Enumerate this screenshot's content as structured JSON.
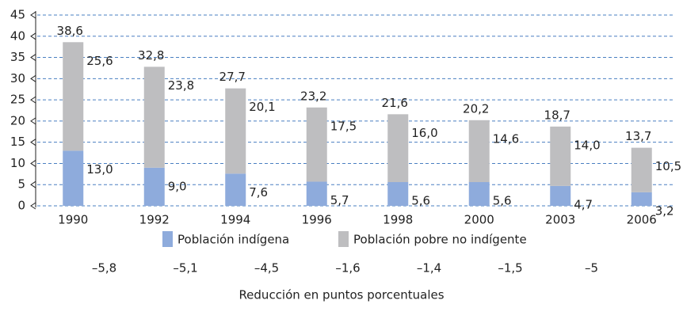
{
  "chart_data": {
    "type": "stacked_bar",
    "categories": [
      "1990",
      "1992",
      "1994",
      "1996",
      "1998",
      "2000",
      "2003",
      "2006"
    ],
    "series": [
      {
        "name": "Población indígena",
        "color": "#8eabdc",
        "values": [
          13.0,
          9.0,
          7.6,
          5.7,
          5.6,
          5.6,
          4.7,
          3.2
        ],
        "value_labels": [
          "13,0",
          "9,0",
          "7,6",
          "5,7",
          "5,6",
          "5,6",
          "4,7",
          "3,2"
        ]
      },
      {
        "name": "Población pobre no indígente",
        "color": "#bebec0",
        "values": [
          25.6,
          23.8,
          20.1,
          17.5,
          16.0,
          14.6,
          14.0,
          10.5
        ],
        "value_labels": [
          "25,6",
          "23,8",
          "20,1",
          "17,5",
          "16,0",
          "14,6",
          "14,0",
          "10,5"
        ]
      }
    ],
    "totals": {
      "values": [
        38.6,
        32.8,
        27.7,
        23.2,
        21.6,
        20.2,
        18.7,
        13.7
      ],
      "value_labels": [
        "38,6",
        "32,8",
        "27,7",
        "23,2",
        "21,6",
        "20,2",
        "18,7",
        "13,7"
      ]
    },
    "reduction": {
      "label": "Reducción en puntos porcentuales",
      "values": [
        -5.8,
        -5.1,
        -4.5,
        -1.6,
        -1.4,
        -1.5,
        -5
      ],
      "value_labels": [
        "–5,8",
        "–5,1",
        "–4,5",
        "–1,6",
        "–1,4",
        "–1,5",
        "–5"
      ]
    },
    "ylim": [
      0,
      45
    ],
    "yticks": [
      0,
      5,
      10,
      15,
      20,
      25,
      30,
      35,
      40,
      45
    ],
    "grid": true
  }
}
